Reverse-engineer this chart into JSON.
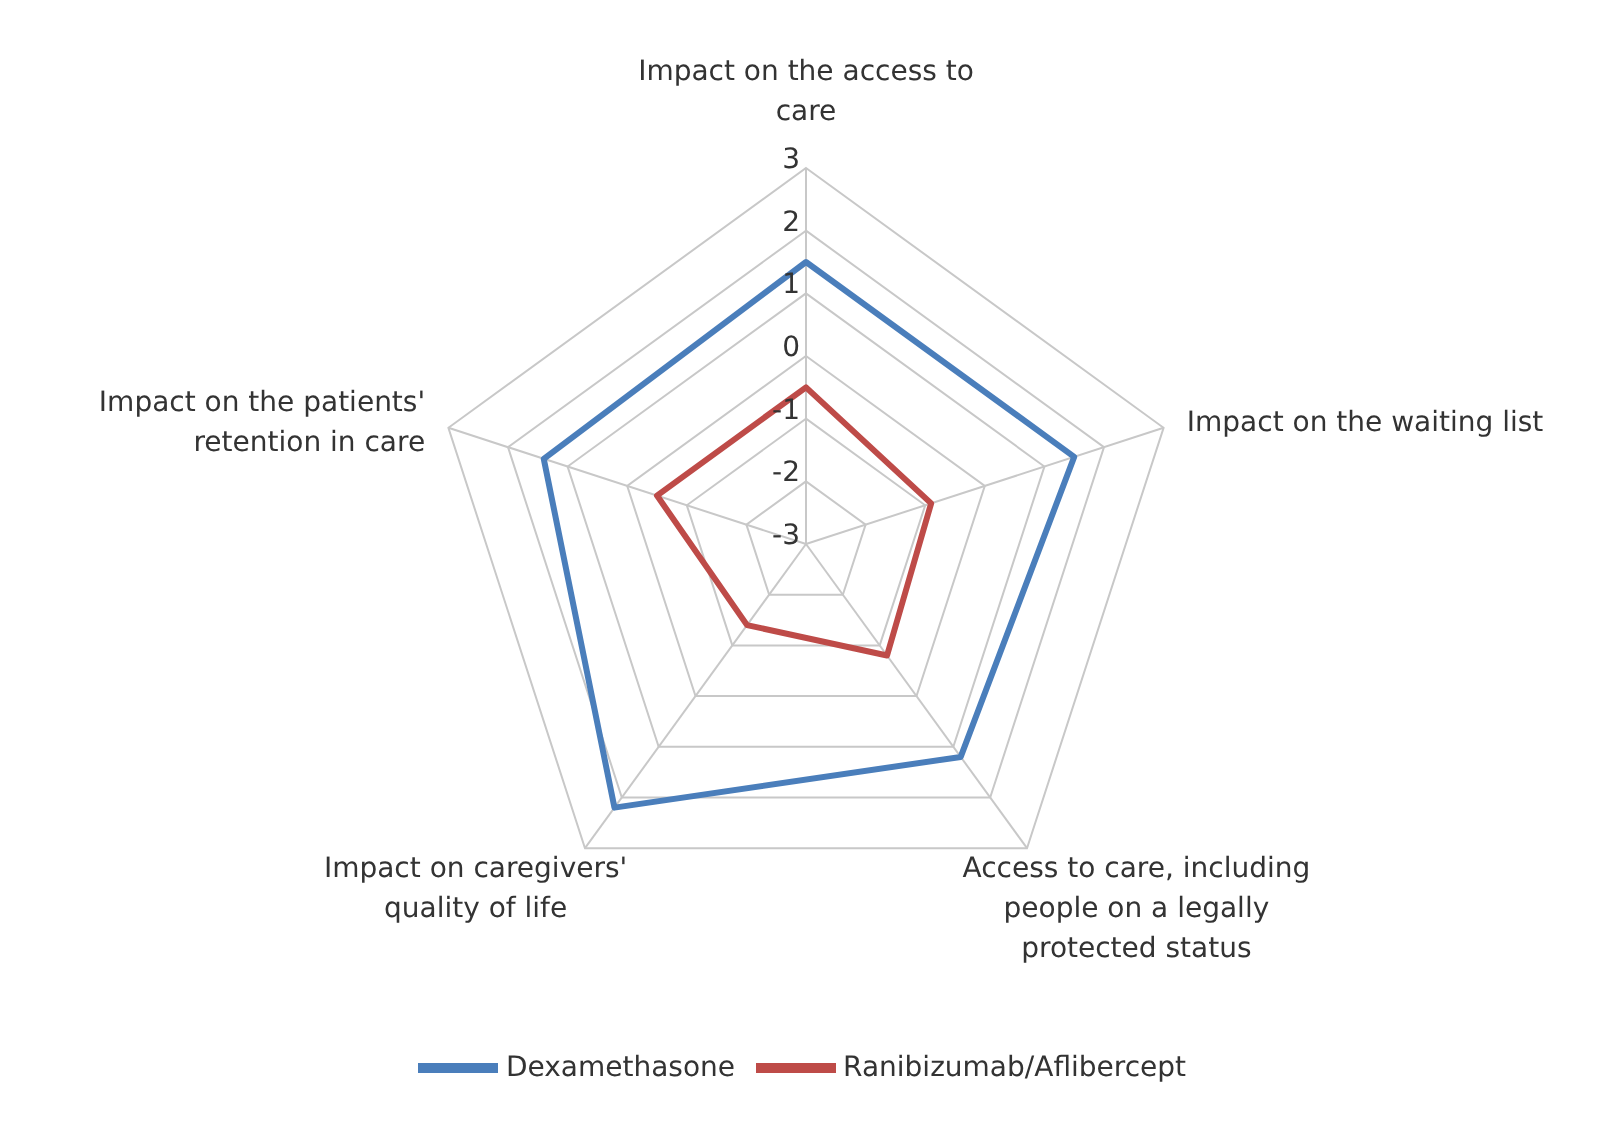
{
  "chart_data": {
    "type": "radar",
    "categories": [
      "Impact on the access to care",
      "Impact on the waiting list",
      "Access to care, including people on a legally protected status",
      "Impact on caregivers' quality of life",
      "Impact on the patients' retention in care"
    ],
    "series": [
      {
        "name": "Dexamethasone",
        "color": "#4a7ebb",
        "values": [
          1.5,
          1.5,
          1.2,
          2.2,
          1.4
        ]
      },
      {
        "name": "Ranibizumab/Aflibercept",
        "color": "#be4b48",
        "values": [
          -0.5,
          -0.9,
          -0.8,
          -1.4,
          -0.5
        ]
      }
    ],
    "ylim": [
      -3,
      3
    ],
    "yticks": [
      -3,
      -2,
      -1,
      0,
      1,
      2,
      3
    ],
    "grid": true,
    "legend": "bottom",
    "marker": "none",
    "line_style": "solid"
  }
}
